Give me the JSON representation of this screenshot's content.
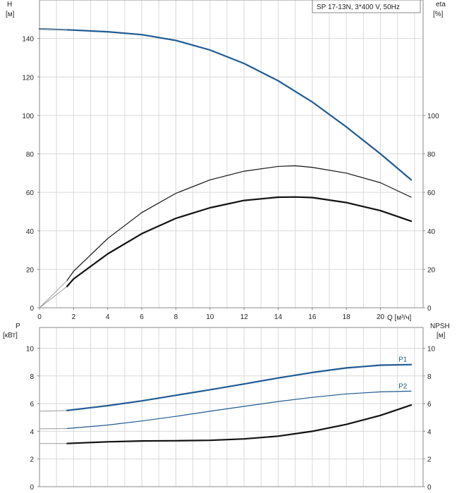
{
  "chart_data": [
    {
      "type": "line",
      "id": "upper",
      "legend_text": "SP 17-13N, 3*400 V, 50Hz",
      "x_label": "Q [м³/ч]",
      "y_left_label_1": "H",
      "y_left_label_2": "[м]",
      "y_right_label_1": "eta",
      "y_right_label_2": "[%]",
      "xlim": [
        0,
        22.5
      ],
      "ylim_left": [
        0,
        160
      ],
      "ylim_right": [
        0,
        160
      ],
      "x_ticks": [
        "0",
        "2",
        "4",
        "6",
        "8",
        "10",
        "12",
        "14",
        "16",
        "18",
        "20"
      ],
      "y_left_ticks": [
        "0",
        "20",
        "40",
        "60",
        "80",
        "100",
        "120",
        "140"
      ],
      "y_right_ticks": [
        "0",
        "20",
        "40",
        "60",
        "80",
        "100"
      ],
      "grid": true,
      "series": [
        {
          "key": "head",
          "axis": "left",
          "color": "#1f5a94",
          "width": 2.2,
          "x": [
            0,
            1.6,
            4,
            6,
            8,
            10,
            12,
            14,
            16,
            18,
            20,
            21.8
          ],
          "y": [
            145,
            144.5,
            143.5,
            142,
            139,
            134,
            127,
            118,
            107,
            94,
            80,
            66.5
          ]
        },
        {
          "key": "head-extrapolated",
          "axis": "left",
          "color": "#9a9a9a",
          "width": 1,
          "x": [
            0,
            1.6
          ],
          "y": [
            145,
            144.5
          ]
        },
        {
          "key": "efficiency-pump",
          "axis": "right",
          "color": "#111111",
          "width": 1.2,
          "x": [
            1.6,
            2,
            4,
            6,
            8,
            10,
            12,
            14,
            15,
            16,
            18,
            20,
            21.8
          ],
          "y": [
            14,
            19,
            36,
            49.5,
            59.5,
            66.5,
            71,
            73.5,
            73.8,
            73,
            70,
            65,
            57.5
          ]
        },
        {
          "key": "efficiency-total",
          "axis": "right",
          "color": "#111111",
          "width": 2.2,
          "x": [
            1.6,
            2,
            4,
            6,
            8,
            10,
            12,
            14,
            15,
            16,
            18,
            20,
            21.8
          ],
          "y": [
            11,
            15,
            28,
            38.5,
            46.5,
            52,
            55.8,
            57.5,
            57.6,
            57.3,
            54.7,
            50.5,
            45
          ]
        },
        {
          "key": "efficiency-extrapolated-1",
          "axis": "right",
          "color": "#9a9a9a",
          "width": 1,
          "x": [
            0,
            1.6
          ],
          "y": [
            0,
            14
          ]
        },
        {
          "key": "efficiency-extrapolated-2",
          "axis": "right",
          "color": "#9a9a9a",
          "width": 1,
          "x": [
            0,
            1.6
          ],
          "y": [
            0,
            11
          ]
        }
      ]
    },
    {
      "type": "line",
      "id": "lower",
      "x_label": "",
      "y_left_label_1": "P",
      "y_left_label_2": "[кВт]",
      "y_right_label_1": "NPSH",
      "y_right_label_2": "[м]",
      "xlim": [
        0,
        22.5
      ],
      "ylim_left": [
        0,
        11.5
      ],
      "ylim_right": [
        0,
        11.5
      ],
      "y_left_ticks": [
        "0",
        "2",
        "4",
        "6",
        "8",
        "10"
      ],
      "y_right_ticks": [
        "0",
        "2",
        "4",
        "6",
        "8",
        "10"
      ],
      "grid": true,
      "series": [
        {
          "key": "P1",
          "name": "P1",
          "axis": "left",
          "color": "#1f5a94",
          "width": 2.2,
          "x": [
            1.6,
            4,
            6,
            8,
            10,
            12,
            14,
            16,
            18,
            20,
            21.8
          ],
          "y": [
            5.5,
            5.85,
            6.2,
            6.6,
            7.0,
            7.42,
            7.85,
            8.25,
            8.58,
            8.78,
            8.82
          ]
        },
        {
          "key": "P2",
          "name": "P2",
          "axis": "left",
          "color": "#1f5a94",
          "width": 1.2,
          "x": [
            1.6,
            4,
            6,
            8,
            10,
            12,
            14,
            16,
            18,
            20,
            21.8
          ],
          "y": [
            4.2,
            4.45,
            4.75,
            5.08,
            5.45,
            5.8,
            6.15,
            6.45,
            6.7,
            6.85,
            6.9
          ]
        },
        {
          "key": "NPSH",
          "axis": "right",
          "color": "#111111",
          "width": 2.2,
          "x": [
            1.6,
            4,
            6,
            8,
            10,
            12,
            14,
            16,
            18,
            20,
            21.8
          ],
          "y": [
            3.12,
            3.24,
            3.3,
            3.32,
            3.35,
            3.45,
            3.65,
            4.0,
            4.5,
            5.15,
            5.9
          ]
        },
        {
          "key": "P1-extrapolated",
          "axis": "left",
          "color": "#9a9a9a",
          "width": 1,
          "x": [
            0,
            1.6
          ],
          "y": [
            5.45,
            5.5
          ]
        },
        {
          "key": "P2-extrapolated",
          "axis": "left",
          "color": "#9a9a9a",
          "width": 1,
          "x": [
            0,
            1.6
          ],
          "y": [
            4.18,
            4.2
          ]
        },
        {
          "key": "NPSH-extrapolated",
          "axis": "right",
          "color": "#9a9a9a",
          "width": 1,
          "x": [
            0,
            1.6
          ],
          "y": [
            3.12,
            3.12
          ]
        }
      ]
    }
  ]
}
